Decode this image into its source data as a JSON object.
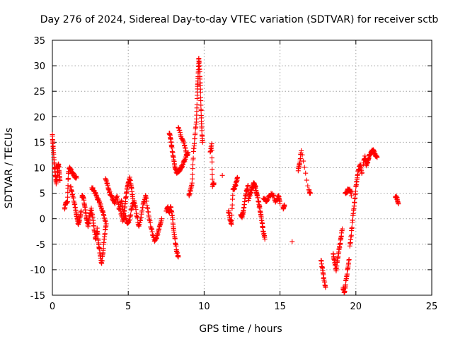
{
  "chart_data": {
    "type": "scatter",
    "title": "Day 276 of 2024, Sidereal Day-to-day VTEC variation (SDTVAR) for receiver sctb",
    "xlabel": "GPS time / hours",
    "ylabel": "SDTVAR / TECUs",
    "xlim": [
      0,
      25
    ],
    "ylim": [
      -15,
      35
    ],
    "xticks": [
      0,
      5,
      10,
      15,
      20,
      25
    ],
    "yticks": [
      -15,
      -10,
      -5,
      0,
      5,
      10,
      15,
      20,
      25,
      30,
      35
    ],
    "grid": true,
    "marker": "+",
    "color": "#ff0000",
    "series": [
      {
        "name": "sctb",
        "tracks": [
          [
            [
              0.0,
              16.5
            ],
            [
              0.05,
              14.0
            ],
            [
              0.1,
              12.0
            ],
            [
              0.15,
              10.0
            ],
            [
              0.2,
              8.5
            ],
            [
              0.25,
              7.0
            ],
            [
              0.3,
              8.0
            ],
            [
              0.35,
              10.0
            ],
            [
              0.4,
              11.0
            ],
            [
              0.45,
              9.0
            ],
            [
              0.5,
              7.5
            ]
          ],
          [
            [
              0.8,
              2.0
            ],
            [
              0.9,
              3.0
            ],
            [
              1.0,
              3.5
            ],
            [
              1.05,
              9.0
            ],
            [
              1.15,
              10.0
            ],
            [
              1.3,
              9.0
            ],
            [
              1.45,
              8.5
            ],
            [
              1.6,
              8.0
            ]
          ],
          [
            [
              1.2,
              6.5
            ],
            [
              1.35,
              4.5
            ],
            [
              1.5,
              2.5
            ],
            [
              1.6,
              0.5
            ],
            [
              1.7,
              -1.0
            ],
            [
              1.8,
              0.0
            ],
            [
              1.9,
              1.5
            ]
          ],
          [
            [
              1.95,
              4.5
            ],
            [
              2.05,
              4.0
            ],
            [
              2.15,
              2.0
            ],
            [
              2.25,
              0.0
            ],
            [
              2.35,
              -1.5
            ],
            [
              2.45,
              0.5
            ],
            [
              2.55,
              2.0
            ],
            [
              2.65,
              0.5
            ],
            [
              2.75,
              -2.0
            ],
            [
              2.85,
              -4.0
            ],
            [
              2.95,
              -2.0
            ],
            [
              3.05,
              -5.0
            ],
            [
              3.15,
              -7.0
            ],
            [
              3.25,
              -9.0
            ],
            [
              3.35,
              -6.0
            ],
            [
              3.45,
              -3.0
            ],
            [
              3.55,
              -1.0
            ]
          ],
          [
            [
              2.6,
              6.0
            ],
            [
              2.75,
              5.5
            ],
            [
              2.9,
              4.5
            ],
            [
              3.05,
              3.5
            ],
            [
              3.2,
              2.5
            ],
            [
              3.35,
              1.0
            ],
            [
              3.5,
              -0.5
            ]
          ],
          [
            [
              3.5,
              8.0
            ],
            [
              3.65,
              6.5
            ],
            [
              3.8,
              5.0
            ],
            [
              3.95,
              4.0
            ],
            [
              4.1,
              3.0
            ],
            [
              4.25,
              4.5
            ],
            [
              4.4,
              2.0
            ],
            [
              4.55,
              3.5
            ],
            [
              4.7,
              1.0
            ],
            [
              4.8,
              3.0
            ],
            [
              4.9,
              5.5
            ],
            [
              5.0,
              7.0
            ],
            [
              5.1,
              8.0
            ],
            [
              5.2,
              6.5
            ],
            [
              5.3,
              4.0
            ]
          ],
          [
            [
              4.5,
              1.5
            ],
            [
              4.65,
              -0.5
            ],
            [
              4.8,
              0.5
            ],
            [
              4.95,
              -1.0
            ],
            [
              5.1,
              0.0
            ],
            [
              5.25,
              2.5
            ],
            [
              5.4,
              3.5
            ],
            [
              5.55,
              1.0
            ],
            [
              5.7,
              -1.5
            ],
            [
              5.85,
              0.5
            ],
            [
              6.0,
              3.0
            ],
            [
              6.15,
              4.5
            ],
            [
              6.3,
              1.5
            ],
            [
              6.45,
              -1.0
            ],
            [
              6.6,
              -3.0
            ],
            [
              6.75,
              -4.5
            ],
            [
              6.9,
              -3.5
            ],
            [
              7.05,
              -1.5
            ],
            [
              7.2,
              0.0
            ]
          ],
          [
            [
              7.5,
              1.5
            ],
            [
              7.6,
              2.5
            ],
            [
              7.7,
              1.0
            ],
            [
              7.8,
              2.5
            ],
            [
              7.9,
              0.5
            ],
            [
              8.0,
              -2.5
            ],
            [
              8.1,
              -4.5
            ],
            [
              8.2,
              -6.5
            ],
            [
              8.3,
              -7.5
            ]
          ],
          [
            [
              7.7,
              17.0
            ],
            [
              7.8,
              15.5
            ],
            [
              7.9,
              13.5
            ],
            [
              8.0,
              11.5
            ],
            [
              8.1,
              10.0
            ],
            [
              8.2,
              9.0
            ],
            [
              8.35,
              9.5
            ],
            [
              8.5,
              10.0
            ],
            [
              8.65,
              11.0
            ],
            [
              8.8,
              12.0
            ],
            [
              8.95,
              13.0
            ]
          ],
          [
            [
              8.3,
              18.0
            ],
            [
              8.5,
              16.0
            ],
            [
              8.7,
              14.5
            ],
            [
              8.85,
              12.5
            ]
          ],
          [
            [
              9.0,
              4.5
            ],
            [
              9.1,
              5.5
            ],
            [
              9.2,
              7.0
            ],
            [
              9.3,
              13.0
            ],
            [
              9.4,
              16.5
            ],
            [
              9.5,
              19.5
            ],
            [
              9.55,
              25.0
            ],
            [
              9.6,
              28.0
            ],
            [
              9.65,
              31.5
            ],
            [
              9.7,
              29.0
            ],
            [
              9.75,
              26.0
            ],
            [
              9.8,
              21.0
            ],
            [
              9.85,
              17.0
            ],
            [
              9.9,
              15.0
            ]
          ],
          [
            [
              10.4,
              13.0
            ],
            [
              10.5,
              14.5
            ],
            [
              10.55,
              6.5
            ],
            [
              10.65,
              7.0
            ]
          ],
          [
            [
              11.2,
              8.5
            ]
          ],
          [
            [
              11.6,
              1.5
            ],
            [
              11.7,
              0.0
            ],
            [
              11.8,
              -1.0
            ],
            [
              11.9,
              5.5
            ],
            [
              12.0,
              6.0
            ],
            [
              12.1,
              7.0
            ],
            [
              12.2,
              8.0
            ]
          ],
          [
            [
              12.4,
              1.0
            ],
            [
              12.5,
              0.5
            ],
            [
              12.6,
              1.5
            ],
            [
              12.7,
              4.0
            ],
            [
              12.8,
              5.5
            ],
            [
              12.9,
              6.5
            ]
          ],
          [
            [
              12.9,
              3.5
            ],
            [
              13.0,
              4.5
            ],
            [
              13.1,
              5.5
            ],
            [
              13.2,
              6.5
            ],
            [
              13.3,
              7.0
            ],
            [
              13.4,
              6.0
            ],
            [
              13.5,
              4.5
            ],
            [
              13.6,
              3.0
            ],
            [
              13.7,
              1.5
            ],
            [
              13.8,
              -0.5
            ],
            [
              13.9,
              -2.5
            ],
            [
              14.0,
              -4.0
            ]
          ],
          [
            [
              13.9,
              4.0
            ],
            [
              14.1,
              3.5
            ],
            [
              14.3,
              4.5
            ],
            [
              14.5,
              5.0
            ],
            [
              14.7,
              3.5
            ],
            [
              14.9,
              4.5
            ],
            [
              15.0,
              3.0
            ]
          ],
          [
            [
              15.2,
              2.0
            ],
            [
              15.3,
              2.5
            ]
          ],
          [
            [
              15.8,
              -4.5
            ]
          ],
          [
            [
              16.2,
              9.5
            ],
            [
              16.3,
              11.0
            ],
            [
              16.4,
              13.5
            ],
            [
              16.9,
              5.5
            ],
            [
              17.0,
              5.0
            ]
          ],
          [
            [
              17.7,
              -8.0
            ],
            [
              17.8,
              -10.0
            ],
            [
              17.9,
              -12.0
            ],
            [
              18.0,
              -13.5
            ]
          ],
          [
            [
              18.5,
              -7.0
            ],
            [
              18.6,
              -8.5
            ],
            [
              18.7,
              -10.0
            ],
            [
              18.8,
              -8.0
            ],
            [
              18.9,
              -6.0
            ],
            [
              19.0,
              -4.0
            ],
            [
              19.1,
              -2.0
            ]
          ],
          [
            [
              19.15,
              -13.5
            ],
            [
              19.25,
              -14.5
            ],
            [
              19.35,
              -12.0
            ],
            [
              19.45,
              -10.0
            ],
            [
              19.55,
              -8.0
            ]
          ],
          [
            [
              19.3,
              5.0
            ],
            [
              19.45,
              5.5
            ],
            [
              19.6,
              6.0
            ],
            [
              19.7,
              4.5
            ]
          ],
          [
            [
              19.6,
              -5.5
            ],
            [
              19.7,
              -3.0
            ],
            [
              19.8,
              0.5
            ],
            [
              19.9,
              3.0
            ],
            [
              20.0,
              6.0
            ],
            [
              20.1,
              8.5
            ],
            [
              20.2,
              10.0
            ],
            [
              20.3,
              10.5
            ],
            [
              20.4,
              9.0
            ]
          ],
          [
            [
              20.5,
              11.0
            ],
            [
              20.6,
              12.0
            ],
            [
              20.7,
              10.5
            ],
            [
              20.8,
              11.5
            ],
            [
              20.9,
              12.5
            ],
            [
              21.0,
              13.0
            ],
            [
              21.1,
              13.5
            ],
            [
              21.2,
              13.0
            ],
            [
              21.3,
              12.5
            ],
            [
              21.4,
              12.0
            ]
          ],
          [
            [
              22.6,
              4.5
            ],
            [
              22.7,
              4.0
            ],
            [
              22.8,
              3.0
            ]
          ]
        ]
      }
    ]
  }
}
